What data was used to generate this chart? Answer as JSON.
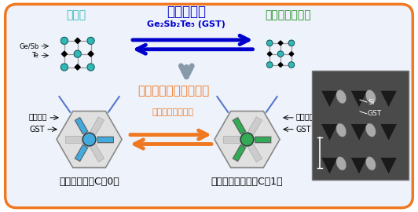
{
  "bg_color": "#ffffff",
  "border_color": "#f07820",
  "inner_bg": "#eef2fa",
  "title_busshitsu": "物質相転移",
  "title_kessho": "結晶相",
  "title_amorphous": "アモルファス相",
  "gst_label": "Ge₂Sb₂Te₅ (GST)",
  "hikari_title": "光トポロジカル相転移",
  "photonic_label": "フォトニック結晶",
  "normal_label": "ノーマル相（C＝0）",
  "topo_label": "トポロジカル相（C＝1）",
  "silicon_label": "シリコン",
  "gst_arrow_label": "GST",
  "ge_sb_label": "Ge/Sb",
  "te_label": "Te",
  "teal_color": "#2eb8b8",
  "blue_color": "#0000cd",
  "green_color": "#228b22",
  "orange_color": "#f07820",
  "light_blue_cell": "#55aadd",
  "sem_bg": "#555555"
}
